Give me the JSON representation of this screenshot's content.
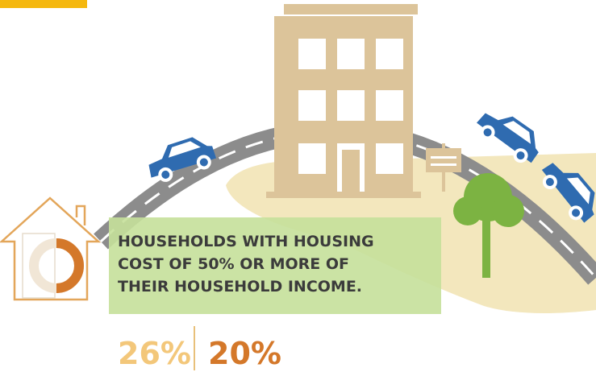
{
  "caption": {
    "lines": [
      "HOUSEHOLDS WITH HOUSING",
      "COST OF 50% OR MORE OF",
      "THEIR HOUSEHOLD INCOME."
    ]
  },
  "stats": [
    "26%",
    "20%"
  ]
}
